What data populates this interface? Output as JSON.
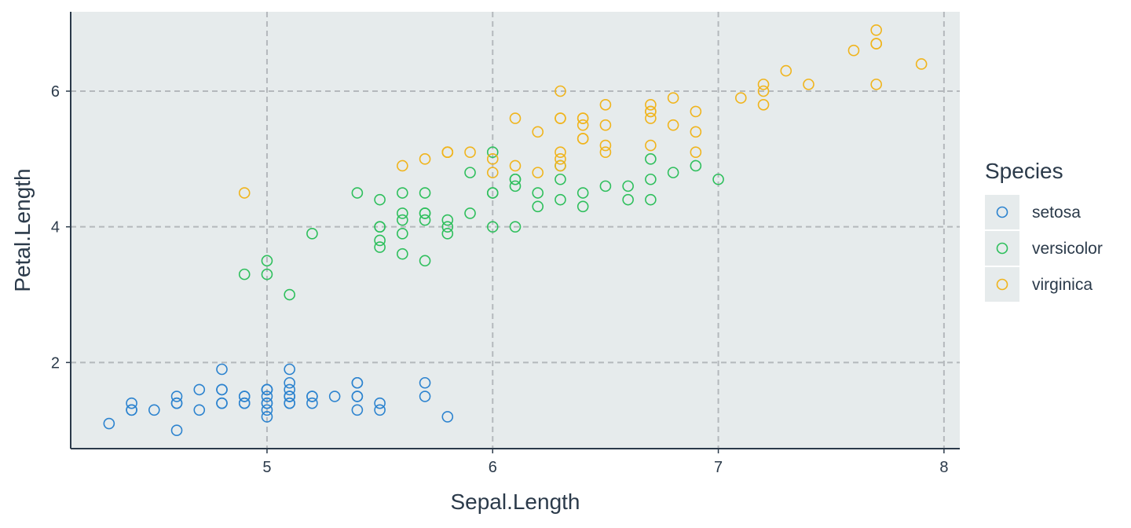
{
  "chart_data": {
    "type": "scatter",
    "title": "",
    "xlabel": "Sepal.Length",
    "ylabel": "Petal.Length",
    "xlim": [
      4.13,
      8.07
    ],
    "ylim": [
      0.73,
      7.17
    ],
    "x_ticks": [
      5,
      6,
      7,
      8
    ],
    "y_ticks": [
      2,
      4,
      6
    ],
    "x_tick_labels": [
      "5",
      "6",
      "7",
      "8"
    ],
    "y_tick_labels": [
      "2",
      "4",
      "6"
    ],
    "grid": true,
    "grid_style": "dashed",
    "panel_background": "#e6ebec",
    "grid_color": "#b4b8bc",
    "legend": {
      "title": "Species",
      "position": "right"
    },
    "series": [
      {
        "name": "setosa",
        "color": "#2c83cf",
        "points": [
          [
            5.1,
            1.4
          ],
          [
            4.9,
            1.4
          ],
          [
            4.7,
            1.3
          ],
          [
            4.6,
            1.5
          ],
          [
            5.0,
            1.4
          ],
          [
            5.4,
            1.7
          ],
          [
            4.6,
            1.4
          ],
          [
            5.0,
            1.5
          ],
          [
            4.4,
            1.4
          ],
          [
            4.9,
            1.5
          ],
          [
            5.4,
            1.5
          ],
          [
            4.8,
            1.6
          ],
          [
            4.8,
            1.4
          ],
          [
            4.3,
            1.1
          ],
          [
            5.8,
            1.2
          ],
          [
            5.7,
            1.5
          ],
          [
            5.4,
            1.3
          ],
          [
            5.1,
            1.4
          ],
          [
            5.7,
            1.7
          ],
          [
            5.1,
            1.5
          ],
          [
            5.4,
            1.7
          ],
          [
            5.1,
            1.5
          ],
          [
            4.6,
            1.0
          ],
          [
            5.1,
            1.7
          ],
          [
            4.8,
            1.9
          ],
          [
            5.0,
            1.6
          ],
          [
            5.0,
            1.6
          ],
          [
            5.2,
            1.5
          ],
          [
            5.2,
            1.4
          ],
          [
            4.7,
            1.6
          ],
          [
            4.8,
            1.6
          ],
          [
            5.4,
            1.5
          ],
          [
            5.2,
            1.5
          ],
          [
            5.5,
            1.4
          ],
          [
            4.9,
            1.5
          ],
          [
            5.0,
            1.2
          ],
          [
            5.5,
            1.3
          ],
          [
            4.9,
            1.4
          ],
          [
            4.4,
            1.3
          ],
          [
            5.1,
            1.5
          ],
          [
            5.0,
            1.3
          ],
          [
            4.5,
            1.3
          ],
          [
            4.4,
            1.3
          ],
          [
            5.0,
            1.6
          ],
          [
            5.1,
            1.9
          ],
          [
            4.8,
            1.4
          ],
          [
            5.1,
            1.6
          ],
          [
            4.6,
            1.4
          ],
          [
            5.3,
            1.5
          ],
          [
            5.0,
            1.4
          ]
        ]
      },
      {
        "name": "versicolor",
        "color": "#2ebf5c",
        "points": [
          [
            7.0,
            4.7
          ],
          [
            6.4,
            4.5
          ],
          [
            6.9,
            4.9
          ],
          [
            5.5,
            4.0
          ],
          [
            6.5,
            4.6
          ],
          [
            5.7,
            4.5
          ],
          [
            6.3,
            4.7
          ],
          [
            4.9,
            3.3
          ],
          [
            6.6,
            4.6
          ],
          [
            5.2,
            3.9
          ],
          [
            5.0,
            3.5
          ],
          [
            5.9,
            4.2
          ],
          [
            6.0,
            4.0
          ],
          [
            6.1,
            4.7
          ],
          [
            5.6,
            3.6
          ],
          [
            6.7,
            4.4
          ],
          [
            5.6,
            4.5
          ],
          [
            5.8,
            4.1
          ],
          [
            6.2,
            4.5
          ],
          [
            5.6,
            3.9
          ],
          [
            5.9,
            4.8
          ],
          [
            6.1,
            4.0
          ],
          [
            6.3,
            4.9
          ],
          [
            6.1,
            4.7
          ],
          [
            6.4,
            4.3
          ],
          [
            6.6,
            4.4
          ],
          [
            6.8,
            4.8
          ],
          [
            6.7,
            5.0
          ],
          [
            6.0,
            4.5
          ],
          [
            5.7,
            3.5
          ],
          [
            5.5,
            3.8
          ],
          [
            5.5,
            3.7
          ],
          [
            5.8,
            3.9
          ],
          [
            6.0,
            5.1
          ],
          [
            5.4,
            4.5
          ],
          [
            6.0,
            4.5
          ],
          [
            6.7,
            4.7
          ],
          [
            6.3,
            4.4
          ],
          [
            5.6,
            4.1
          ],
          [
            5.5,
            4.0
          ],
          [
            5.5,
            4.4
          ],
          [
            6.1,
            4.6
          ],
          [
            5.8,
            4.0
          ],
          [
            5.0,
            3.3
          ],
          [
            5.6,
            4.2
          ],
          [
            5.7,
            4.2
          ],
          [
            5.7,
            4.2
          ],
          [
            6.2,
            4.3
          ],
          [
            5.1,
            3.0
          ],
          [
            5.7,
            4.1
          ]
        ]
      },
      {
        "name": "virginica",
        "color": "#f0b41c",
        "points": [
          [
            6.3,
            6.0
          ],
          [
            5.8,
            5.1
          ],
          [
            7.1,
            5.9
          ],
          [
            6.3,
            5.6
          ],
          [
            6.5,
            5.8
          ],
          [
            7.6,
            6.6
          ],
          [
            4.9,
            4.5
          ],
          [
            7.3,
            6.3
          ],
          [
            6.7,
            5.8
          ],
          [
            7.2,
            6.1
          ],
          [
            6.5,
            5.1
          ],
          [
            6.4,
            5.3
          ],
          [
            6.8,
            5.5
          ],
          [
            5.7,
            5.0
          ],
          [
            5.8,
            5.1
          ],
          [
            6.4,
            5.3
          ],
          [
            6.5,
            5.5
          ],
          [
            7.7,
            6.7
          ],
          [
            7.7,
            6.9
          ],
          [
            6.0,
            5.0
          ],
          [
            6.9,
            5.7
          ],
          [
            5.6,
            4.9
          ],
          [
            7.7,
            6.7
          ],
          [
            6.3,
            4.9
          ],
          [
            6.7,
            5.7
          ],
          [
            7.2,
            6.0
          ],
          [
            6.2,
            4.8
          ],
          [
            6.1,
            4.9
          ],
          [
            6.4,
            5.6
          ],
          [
            7.2,
            5.8
          ],
          [
            7.4,
            6.1
          ],
          [
            7.9,
            6.4
          ],
          [
            6.4,
            5.6
          ],
          [
            6.3,
            5.1
          ],
          [
            6.1,
            5.6
          ],
          [
            7.7,
            6.1
          ],
          [
            6.3,
            5.6
          ],
          [
            6.4,
            5.5
          ],
          [
            6.0,
            4.8
          ],
          [
            6.9,
            5.4
          ],
          [
            6.7,
            5.6
          ],
          [
            6.9,
            5.1
          ],
          [
            5.8,
            5.1
          ],
          [
            6.8,
            5.9
          ],
          [
            6.7,
            5.7
          ],
          [
            6.7,
            5.2
          ],
          [
            6.3,
            5.0
          ],
          [
            6.5,
            5.2
          ],
          [
            6.2,
            5.4
          ],
          [
            5.9,
            5.1
          ]
        ]
      }
    ]
  }
}
